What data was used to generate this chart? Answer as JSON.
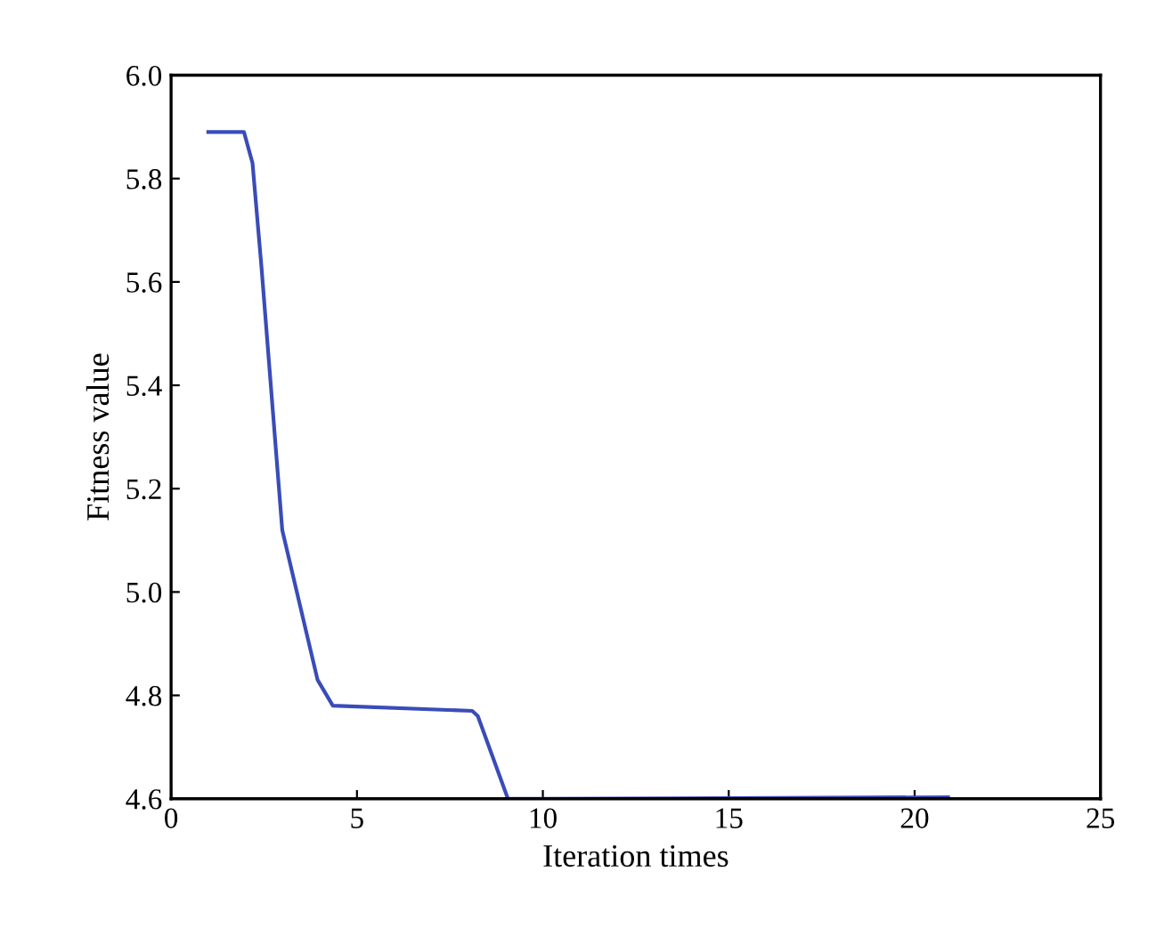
{
  "chart_data": {
    "type": "line",
    "xlabel": "Iteration times",
    "ylabel": "Fitness value",
    "x": [
      1.0,
      1.96,
      2.19,
      2.43,
      2.99,
      3.94,
      4.35,
      8.1,
      8.25,
      9.06,
      10,
      15,
      20.9
    ],
    "series": [
      {
        "color": "#3a4cb8",
        "values": [
          5.89,
          5.89,
          5.83,
          5.63,
          5.12,
          4.83,
          4.78,
          4.77,
          4.76,
          4.6,
          4.6,
          4.601,
          4.603
        ]
      }
    ],
    "xlim": [
      0,
      25
    ],
    "ylim": [
      4.6,
      6.0
    ],
    "xticks": [
      0,
      5,
      10,
      15,
      20,
      25
    ],
    "yticks": [
      {
        "value": 4.6,
        "label": "4.6"
      },
      {
        "value": 4.8,
        "label": "4.8"
      },
      {
        "value": 5.0,
        "label": "5.0"
      },
      {
        "value": 5.2,
        "label": "5.2"
      },
      {
        "value": 5.4,
        "label": "5.4"
      },
      {
        "value": 5.6,
        "label": "5.6"
      },
      {
        "value": 5.8,
        "label": "5.8"
      },
      {
        "value": 6.0,
        "label": "6.0"
      }
    ],
    "grid": false,
    "legend": false,
    "marker": "none",
    "line_style": "solid"
  }
}
